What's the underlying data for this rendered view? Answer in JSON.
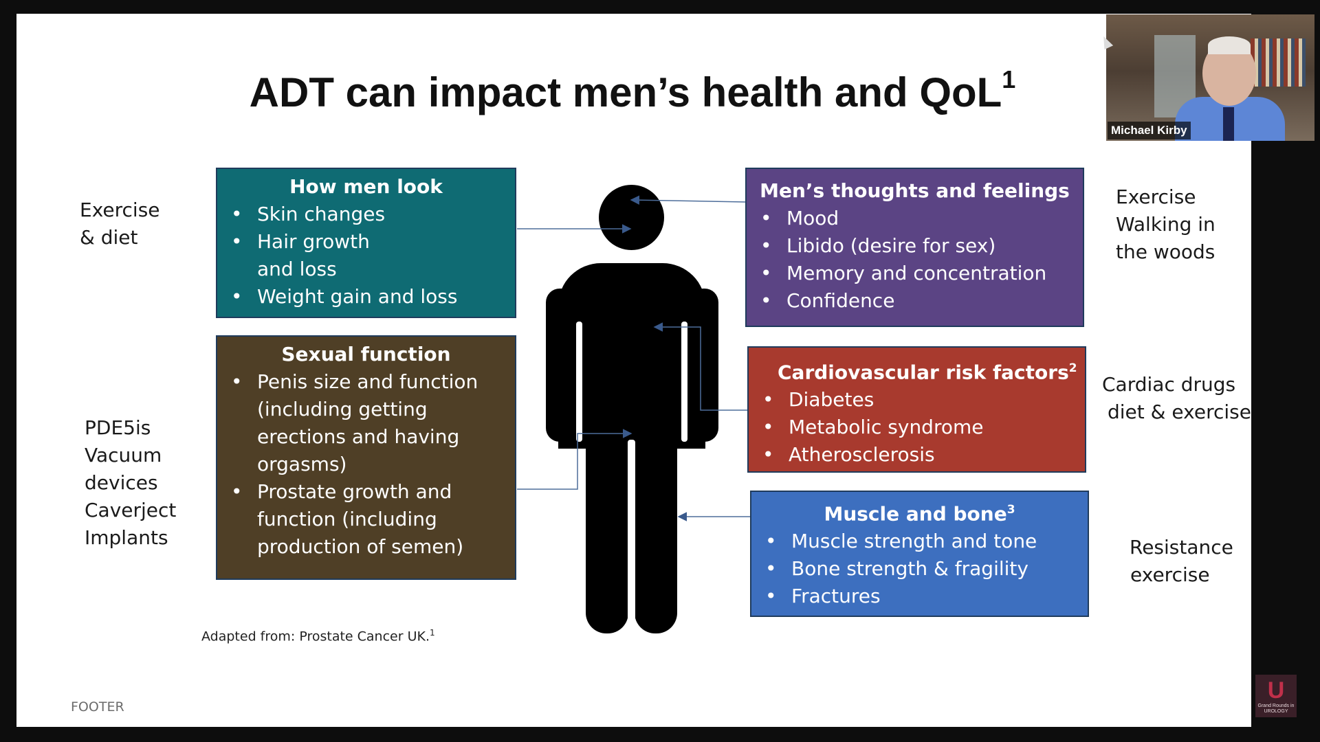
{
  "title": {
    "text": "ADT can impact men’s health and QoL",
    "sup": "1"
  },
  "boxes": {
    "look": {
      "heading": "How men look",
      "heading_sup": "",
      "color": "#0f6b73",
      "items": [
        "Skin changes",
        "Hair growth",
        "and loss",
        "Weight gain and loss"
      ]
    },
    "sexual": {
      "heading": "Sexual function",
      "heading_sup": "",
      "color": "#4f3f26",
      "items": [
        "Penis size and function",
        "(including getting",
        "erections and having",
        "orgasms)",
        "Prostate growth and",
        "function (including",
        "production of semen)"
      ]
    },
    "thoughts": {
      "heading": "Men’s thoughts and feelings",
      "heading_sup": "",
      "color": "#5b4484",
      "items": [
        "Mood",
        "Libido (desire for sex)",
        "Memory and concentration",
        "Confidence"
      ]
    },
    "cardio": {
      "heading": "Cardiovascular risk factors",
      "heading_sup": "2",
      "color": "#a83a2e",
      "items": [
        "Diabetes",
        "Metabolic syndrome",
        "Atherosclerosis"
      ]
    },
    "muscle": {
      "heading": "Muscle and bone",
      "heading_sup": "3",
      "color": "#3d6fbf",
      "items": [
        "Muscle strength and tone",
        "Bone strength & fragility",
        "Fractures"
      ]
    }
  },
  "sides": {
    "exercise_diet": [
      "Exercise",
      "& diet"
    ],
    "pde5": [
      "PDE5is",
      "Vacuum",
      "devices",
      "Caverject",
      "Implants"
    ],
    "exercise_woods": [
      "Exercise",
      "Walking in",
      "the woods"
    ],
    "cardiac": [
      "Cardiac drugs",
      "diet & exercise"
    ],
    "resistance": [
      "Resistance",
      "exercise"
    ]
  },
  "source": {
    "text": "Adapted from: Prostate Cancer UK.",
    "sup": "1"
  },
  "footer": "FOOTER",
  "participant": {
    "name": "Michael Kirby"
  },
  "logo": {
    "letter": "U",
    "text": "Grand Rounds in UROLOGY"
  }
}
